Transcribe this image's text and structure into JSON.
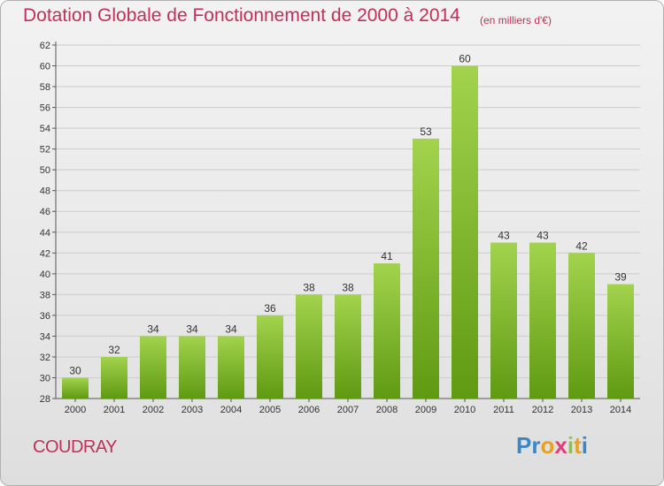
{
  "header": {
    "title": "Dotation Globale de Fonctionnement de 2000 à 2014",
    "unit_note": "(en milliers d'€)"
  },
  "footer": {
    "commune": "COUDRAY",
    "logo_text": "Proxiti"
  },
  "colors": {
    "title": "#c0305a",
    "bar_light": "#a3d34e",
    "bar_dark": "#5f9a12",
    "background": "#ececec",
    "logo_letters": [
      "#3a86c8",
      "#3a86c8",
      "#e8a01e",
      "#e23b7a",
      "#8bc34a",
      "#e8a01e",
      "#3a86c8"
    ]
  },
  "chart_data": {
    "type": "bar",
    "categories": [
      "2000",
      "2001",
      "2002",
      "2003",
      "2004",
      "2005",
      "2006",
      "2007",
      "2008",
      "2009",
      "2010",
      "2011",
      "2012",
      "2013",
      "2014"
    ],
    "values": [
      30,
      32,
      34,
      34,
      34,
      36,
      38,
      38,
      41,
      53,
      60,
      43,
      43,
      42,
      39
    ],
    "title": "Dotation Globale de Fonctionnement de 2000 à 2014",
    "subtitle": "(en milliers d'€)",
    "ylim": [
      28,
      62
    ],
    "ytick_step": 2,
    "grid": "horizontal",
    "data_labels": true
  }
}
